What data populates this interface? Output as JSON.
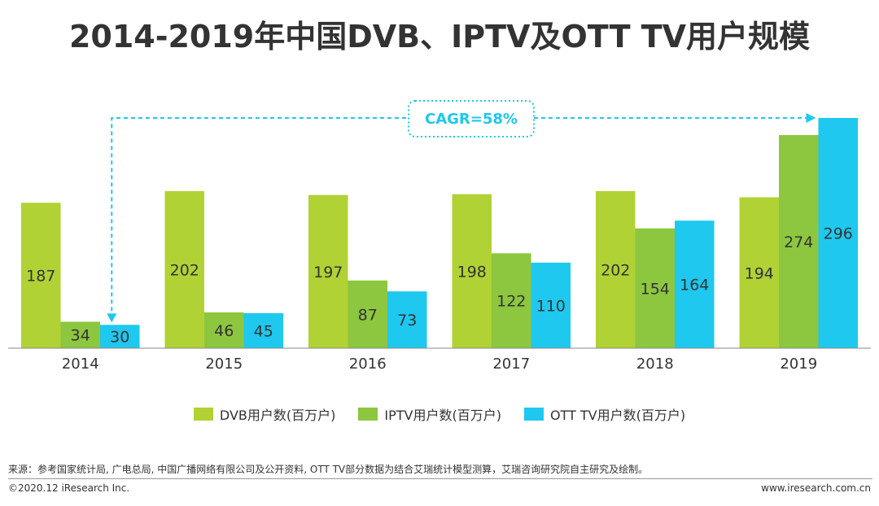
{
  "title": "2014-2019年中国DVB、IPTV及OTT TV用户规模",
  "chart_data": {
    "type": "bar",
    "title": "2014-2019年中国DVB、IPTV及OTT TV用户规模",
    "categories": [
      "2014",
      "2015",
      "2016",
      "2017",
      "2018",
      "2019"
    ],
    "series": [
      {
        "name": "DVB用户数(百万户)",
        "color": "#b1d234",
        "values": [
          187,
          202,
          197,
          198,
          202,
          194
        ]
      },
      {
        "name": "IPTV用户数(百万户)",
        "color": "#8dc63f",
        "values": [
          34,
          46,
          87,
          122,
          154,
          274
        ]
      },
      {
        "name": "OTT TV用户数(百万户)",
        "color": "#1ec8ee",
        "values": [
          30,
          45,
          73,
          110,
          164,
          296
        ]
      }
    ],
    "annotation": {
      "label": "CAGR=58%",
      "color": "#1ec8ee"
    },
    "ylim": [
      0,
      296
    ],
    "xlabel": "",
    "ylabel": ""
  },
  "footer": {
    "source": "来源：参考国家统计局, 广电总局, 中国广播网络有限公司及公开资料, OTT TV部分数据为结合艾瑞统计模型测算，艾瑞咨询研究院自主研究及绘制。",
    "copyright": "©2020.12 iResearch Inc.",
    "website": "www.iresearch.com.cn"
  }
}
